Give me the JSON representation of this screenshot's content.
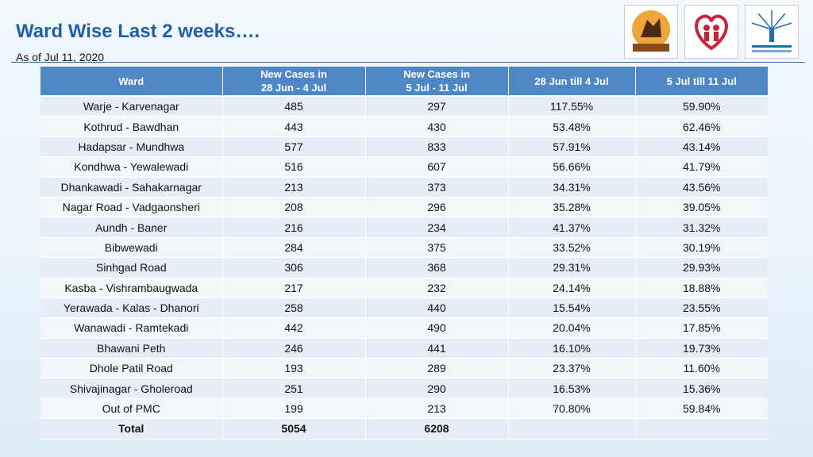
{
  "title": "Ward Wise Last 2 weeks….",
  "subtitle": "As of Jul 11, 2020",
  "colors": {
    "title": "#1f5fa8",
    "header_bg": "#4f86c6",
    "row_a": "#e6edf6",
    "row_b": "#f3f6fb"
  },
  "logos": [
    "pmc-logo",
    "health-dept-logo",
    "pune-smart-city-logo"
  ],
  "table": {
    "headers": [
      "Ward",
      "New Cases in\n28 Jun - 4 Jul",
      "New Cases in\n5 Jul - 11 Jul",
      "28 Jun till 4 Jul",
      "5 Jul till 11 Jul"
    ],
    "rows": [
      [
        "Warje - Karvenagar",
        "485",
        "297",
        "117.55%",
        "59.90%"
      ],
      [
        "Kothrud - Bawdhan",
        "443",
        "430",
        "53.48%",
        "62.46%"
      ],
      [
        "Hadapsar - Mundhwa",
        "577",
        "833",
        "57.91%",
        "43.14%"
      ],
      [
        "Kondhwa - Yewalewadi",
        "516",
        "607",
        "56.66%",
        "41.79%"
      ],
      [
        "Dhankawadi - Sahakarnagar",
        "213",
        "373",
        "34.31%",
        "43.56%"
      ],
      [
        "Nagar Road - Vadgaonsheri",
        "208",
        "296",
        "35.28%",
        "39.05%"
      ],
      [
        "Aundh - Baner",
        "216",
        "234",
        "41.37%",
        "31.32%"
      ],
      [
        "Bibwewadi",
        "284",
        "375",
        "33.52%",
        "30.19%"
      ],
      [
        "Sinhgad Road",
        "306",
        "368",
        "29.31%",
        "29.93%"
      ],
      [
        "Kasba - Vishrambaugwada",
        "217",
        "232",
        "24.14%",
        "18.88%"
      ],
      [
        "Yerawada - Kalas - Dhanori",
        "258",
        "440",
        "15.54%",
        "23.55%"
      ],
      [
        "Wanawadi - Ramtekadi",
        "442",
        "490",
        "20.04%",
        "17.85%"
      ],
      [
        "Bhawani Peth",
        "246",
        "441",
        "16.10%",
        "19.73%"
      ],
      [
        "Dhole Patil Road",
        "193",
        "289",
        "23.37%",
        "11.60%"
      ],
      [
        "Shivajinagar - Gholeroad",
        "251",
        "290",
        "16.53%",
        "15.36%"
      ],
      [
        "Out of PMC",
        "199",
        "213",
        "70.80%",
        "59.84%"
      ]
    ],
    "total": [
      "Total",
      "5054",
      "6208",
      "",
      ""
    ]
  }
}
